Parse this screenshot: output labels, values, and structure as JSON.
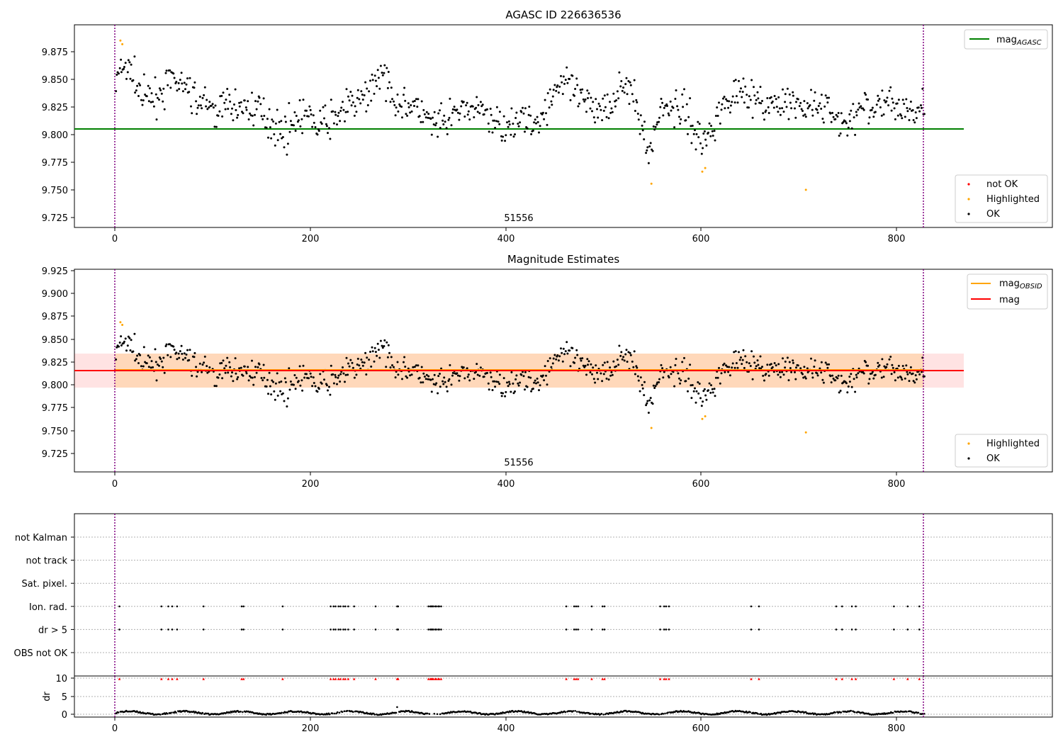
{
  "chart_data": [
    {
      "type": "scatter",
      "title": "AGASC ID 226636536",
      "xlim": [
        -42,
        958
      ],
      "ylim": [
        9.715,
        9.882
      ],
      "x_ticks": [
        0,
        200,
        400,
        600,
        800
      ],
      "y_ticks": [
        9.725,
        9.75,
        9.775,
        9.8,
        9.825,
        9.85,
        9.875
      ],
      "grid": false,
      "vlines": [
        0,
        828
      ],
      "obsid_label": "51556",
      "obsid_label_x": 412,
      "mag_agasc": 9.805,
      "mag_agasc_range": [
        -42,
        870
      ],
      "legend_lines": [
        {
          "name": "mag",
          "subscript": "AGASC",
          "color": "#008000"
        }
      ],
      "legend_lines_position": "top-right",
      "legend_points": [
        {
          "name": "not OK",
          "color": "#ff0000"
        },
        {
          "name": "Highlighted",
          "color": "#ffa500"
        },
        {
          "name": "OK",
          "color": "#000000"
        }
      ],
      "legend_points_position": "lower-right",
      "series": [
        {
          "name": "Highlighted",
          "color": "#ffa500",
          "points": [
            [
              5,
              9.869
            ],
            [
              7,
              9.866
            ],
            [
              548,
              9.751
            ],
            [
              600,
              9.761
            ],
            [
              603,
              9.764
            ],
            [
              706,
              9.746
            ]
          ]
        },
        {
          "name": "OK",
          "color": "#000000",
          "n": 828,
          "x_range": [
            0,
            828
          ],
          "seed": 7,
          "baseline": 9.815,
          "noise": 0.014,
          "dips": [
            [
              100,
              9.812,
              8
            ],
            [
              170,
              9.795,
              12
            ],
            [
              210,
              9.8,
              12
            ],
            [
              330,
              9.798,
              12
            ],
            [
              395,
              9.8,
              14
            ],
            [
              430,
              9.798,
              10
            ],
            [
              545,
              9.778,
              6
            ],
            [
              600,
              9.788,
              10
            ],
            [
              745,
              9.8,
              10
            ]
          ],
          "peaks": [
            [
              10,
              9.847,
              10
            ],
            [
              60,
              9.835,
              14
            ],
            [
              270,
              9.84,
              10
            ],
            [
              455,
              9.835,
              12
            ],
            [
              520,
              9.832,
              8
            ],
            [
              640,
              9.83,
              10
            ]
          ]
        }
      ]
    },
    {
      "type": "scatter",
      "title": "Magnitude Estimates",
      "xlim": [
        -42,
        958
      ],
      "ylim": [
        9.702,
        9.928
      ],
      "x_ticks": [
        0,
        200,
        400,
        600,
        800
      ],
      "y_ticks": [
        9.725,
        9.75,
        9.775,
        9.8,
        9.825,
        9.85,
        9.875,
        9.9,
        9.925
      ],
      "grid": false,
      "vlines": [
        0,
        828
      ],
      "obsid_label": "51556",
      "obsid_label_x": 412,
      "mag": 9.815,
      "mag_obsid": 9.816,
      "mag_band": [
        9.797,
        9.834
      ],
      "mag_obsid_band": [
        9.797,
        9.834
      ],
      "band_range": [
        -42,
        870
      ],
      "obsid_band_range": [
        0,
        828
      ],
      "legend_lines": [
        {
          "name": "mag",
          "subscript": "OBSID",
          "color": "#ffa500"
        },
        {
          "name": "mag",
          "subscript": "",
          "color": "#ff0000"
        }
      ],
      "legend_lines_position": "top-right",
      "legend_points": [
        {
          "name": "Highlighted",
          "color": "#ffa500"
        },
        {
          "name": "OK",
          "color": "#000000"
        }
      ],
      "legend_points_position": "lower-right",
      "series_ref": 0
    },
    {
      "type": "scatter",
      "title": "",
      "xlim": [
        -42,
        958
      ],
      "x_ticks": [
        0,
        200,
        400,
        600,
        800
      ],
      "vlines": [
        0,
        828
      ],
      "flag_categories": [
        "not Kalman",
        "not track",
        "Sat. pixel.",
        "Ion. rad.",
        "dr > 5",
        "OBS not OK"
      ],
      "flag_points": {
        "Ion. rad.": [
          4,
          47,
          54,
          58,
          63,
          90,
          129,
          131,
          171,
          220,
          223,
          225,
          228,
          230,
          233,
          235,
          238,
          244,
          266,
          288,
          289,
          320,
          322,
          323,
          324,
          325,
          327,
          328,
          330,
          331,
          333,
          461,
          469,
          471,
          473,
          487,
          498,
          500,
          557,
          561,
          563,
          566,
          650,
          658,
          737,
          743,
          753,
          757,
          796,
          810,
          822
        ],
        "dr > 5": [
          4,
          47,
          54,
          58,
          63,
          90,
          129,
          131,
          171,
          220,
          223,
          225,
          228,
          230,
          233,
          235,
          238,
          244,
          266,
          288,
          289,
          320,
          322,
          323,
          324,
          325,
          327,
          328,
          330,
          331,
          333,
          461,
          469,
          471,
          473,
          487,
          498,
          500,
          557,
          561,
          563,
          566,
          650,
          658,
          737,
          743,
          753,
          757,
          796,
          810,
          822
        ]
      },
      "dr": {
        "ylabel": "dr",
        "ylim": [
          -0.3,
          10.8
        ],
        "y_ticks": [
          0,
          5,
          10
        ],
        "clip_value": 10,
        "clipped_color": "#ff0000",
        "typical_value": 1.0,
        "outlier": [
          288,
          2.4
        ]
      }
    }
  ]
}
